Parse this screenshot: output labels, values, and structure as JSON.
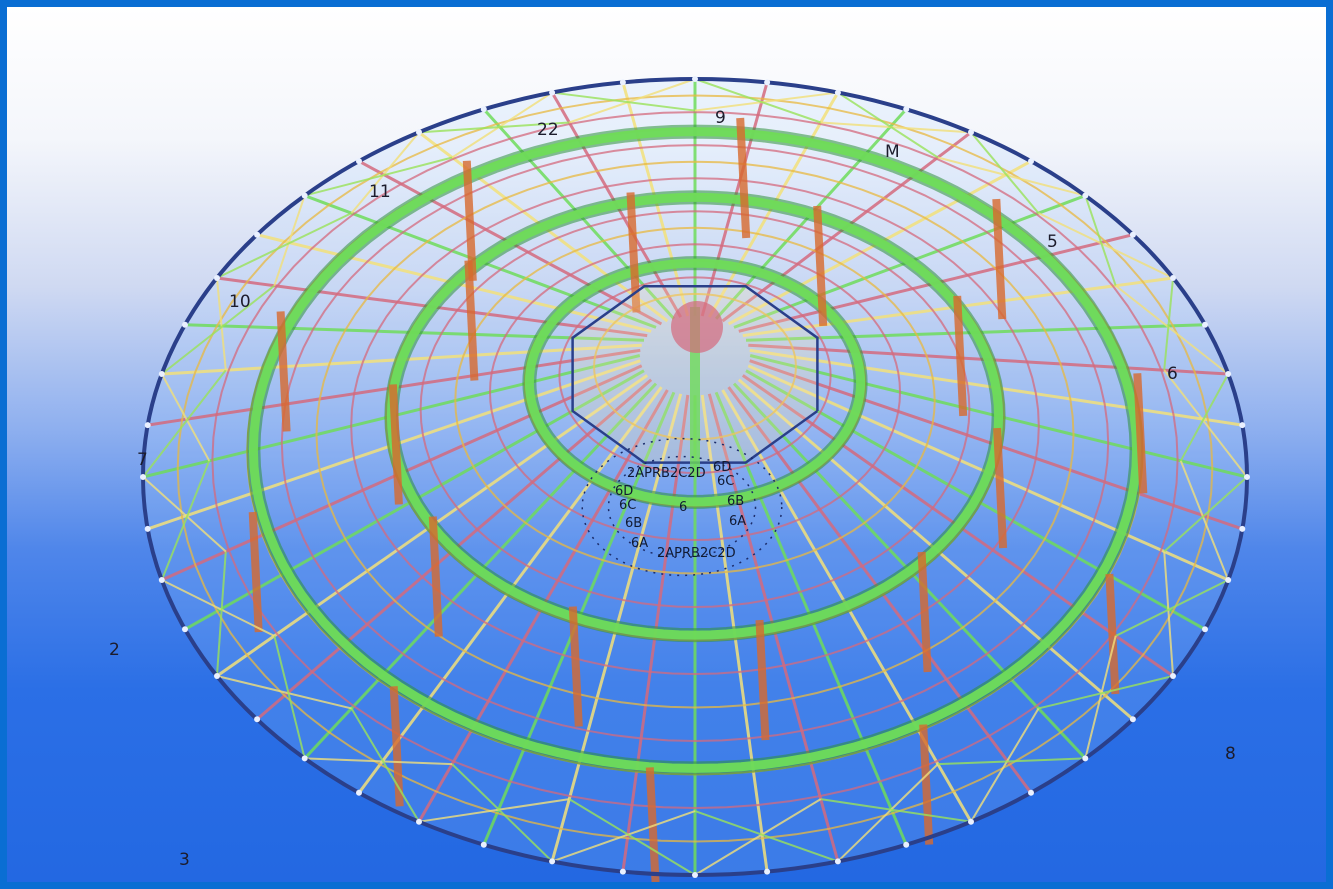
{
  "diagram": {
    "colors": {
      "ring": "#6fdc5a",
      "ring_dark": "#2d8f3a",
      "rib": "#d46a7e",
      "purlin": "#e8b840",
      "column": "#d86a2e",
      "rim": "#2a3f8a",
      "brace": "#f2e07a",
      "accent_green": "#9ae35a"
    },
    "grid_labels": [
      {
        "id": "label-22",
        "text": "22"
      },
      {
        "id": "label-9",
        "text": "9"
      },
      {
        "id": "label-m",
        "text": "M"
      },
      {
        "id": "label-11",
        "text": "11"
      },
      {
        "id": "label-5",
        "text": "5"
      },
      {
        "id": "label-10",
        "text": "10"
      },
      {
        "id": "label-6",
        "text": "6"
      },
      {
        "id": "label-7",
        "text": "7"
      },
      {
        "id": "label-2",
        "text": "2"
      },
      {
        "id": "label-8",
        "text": "8"
      },
      {
        "id": "label-3",
        "text": "3"
      }
    ],
    "center_labels": [
      {
        "id": "center-top",
        "text": "2APRB2C2D"
      },
      {
        "id": "center-6d-left",
        "text": "6D"
      },
      {
        "id": "center-6d-right",
        "text": "6D"
      },
      {
        "id": "center-6c-left",
        "text": "6C"
      },
      {
        "id": "center-6c-right",
        "text": "6C"
      },
      {
        "id": "center-6b-left",
        "text": "6B"
      },
      {
        "id": "center-6b-right",
        "text": "6B"
      },
      {
        "id": "center-6a-left",
        "text": "6A"
      },
      {
        "id": "center-6a-right",
        "text": "6A"
      },
      {
        "id": "center-mid",
        "text": "6"
      },
      {
        "id": "center-bottom",
        "text": "2APRB2C2D"
      }
    ]
  }
}
